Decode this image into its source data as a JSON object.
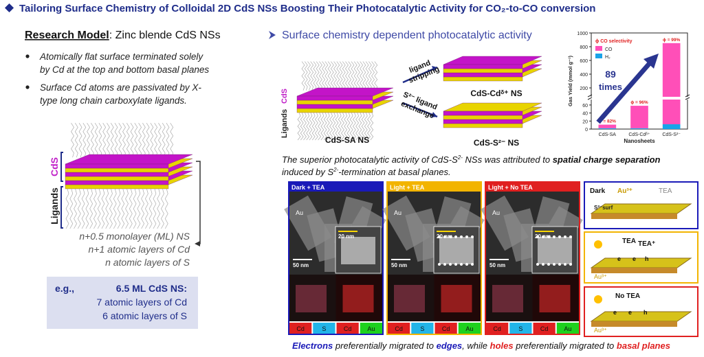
{
  "header": {
    "title": "Tailoring Surface Chemistry of Colloidal 2D CdS NSs Boosting Their Photocatalytic Activity for CO₂-to-CO conversion"
  },
  "left": {
    "heading_label": "Research Model",
    "heading_text": ": Zinc blende CdS NSs",
    "bullets": [
      [
        "Atomically flat surface terminated solely",
        "by Cd at the top and bottom basal planes"
      ],
      [
        "Surface Cd atoms are passivated by X-",
        "type long chain carboxylate ligands."
      ]
    ],
    "stack_labels": {
      "cds": "CdS",
      "ligands": "Ligands"
    },
    "notes": [
      "n+0.5 monolayer (ML) NS",
      "n+1 atomic layers of Cd",
      "n atomic layers of S"
    ],
    "example": {
      "prefix": "e.g.,",
      "title": "6.5 ML CdS NS:",
      "lines": [
        "7 atomic layers of Cd",
        "6 atomic layers of S"
      ]
    }
  },
  "right": {
    "heading": "Surface chemistry dependent photocatalytic activity",
    "scheme": {
      "stack_labels": {
        "cds": "CdS",
        "ligands": "Ligands"
      },
      "start": "CdS-SA NS",
      "top_arrow": [
        "ligand",
        "stripping"
      ],
      "top_product": "CdS-Cdᵟ⁺ NS",
      "bottom_arrow": [
        "S²⁻ ligand",
        "exchange"
      ],
      "bottom_product": "CdS-S²⁻ NS"
    },
    "yield_chart": {
      "y_label": "Gas Yield (mmol g⁻¹)",
      "x_label": "Nanosheets",
      "legend_title": "ϕ CO selectivity",
      "categories": [
        "CdS-SA",
        "CdS-Cdᵟ⁺",
        "CdS-S²⁻"
      ],
      "series": [
        {
          "name": "H₂",
          "color": "#1aa3e8",
          "values": [
            2,
            2,
            12
          ]
        },
        {
          "name": "CO",
          "color": "#ff4fb8",
          "values": [
            9,
            56,
            840
          ]
        }
      ],
      "selectivity_labels": [
        "ϕ = 82%",
        "ϕ = 96%",
        "ϕ = 99%"
      ],
      "ylim_lower": [
        0,
        65
      ],
      "yticks_lower": [
        0,
        20,
        40,
        60
      ],
      "ylim_upper": [
        150,
        1000
      ],
      "yticks_upper": [
        200,
        400,
        600,
        800,
        1000
      ],
      "arrow_label": [
        "89",
        "times"
      ]
    },
    "caption": [
      "The superior photocatalytic activity of CdS-S",
      "2-",
      " NSs was attributed to ",
      "spatial charge separation",
      "induced by S",
      "2-",
      "-termination at basal planes."
    ],
    "panels": [
      {
        "title": "Dark + TEA",
        "color": "#1a1ab8",
        "au": "Au",
        "scale_inset": "20 nm",
        "scale_main": "50 nm",
        "elements": [
          "Cd",
          "S",
          "Cd",
          "Au"
        ]
      },
      {
        "title": "Light + TEA",
        "color": "#f2b400",
        "au": "Au",
        "scale_inset": "20 nm",
        "scale_main": "50 nm",
        "elements": [
          "Cd",
          "S",
          "Cd",
          "Au"
        ]
      },
      {
        "title": "Light + No TEA",
        "color": "#e02020",
        "au": "Au",
        "scale_inset": "20 nm",
        "scale_main": "50 nm",
        "elements": [
          "Cd",
          "S",
          "Cd",
          "Au"
        ]
      }
    ],
    "mechanisms": [
      {
        "color": "#1a1ab8",
        "labels": [
          "Dark",
          "Au³⁺",
          "TEA",
          "S²⁻surf"
        ]
      },
      {
        "color": "#f2b400",
        "labels": [
          "TEA",
          "TEA⁺",
          "e",
          "e",
          "h",
          "Au³⁺"
        ]
      },
      {
        "color": "#e02020",
        "labels": [
          "No TEA",
          "e",
          "e",
          "h",
          "Au³⁺"
        ]
      }
    ],
    "footer": [
      "Electrons",
      " preferentially migrated to ",
      "edges",
      ", while ",
      "holes",
      " preferentially migrated to ",
      "basal planes"
    ]
  }
}
